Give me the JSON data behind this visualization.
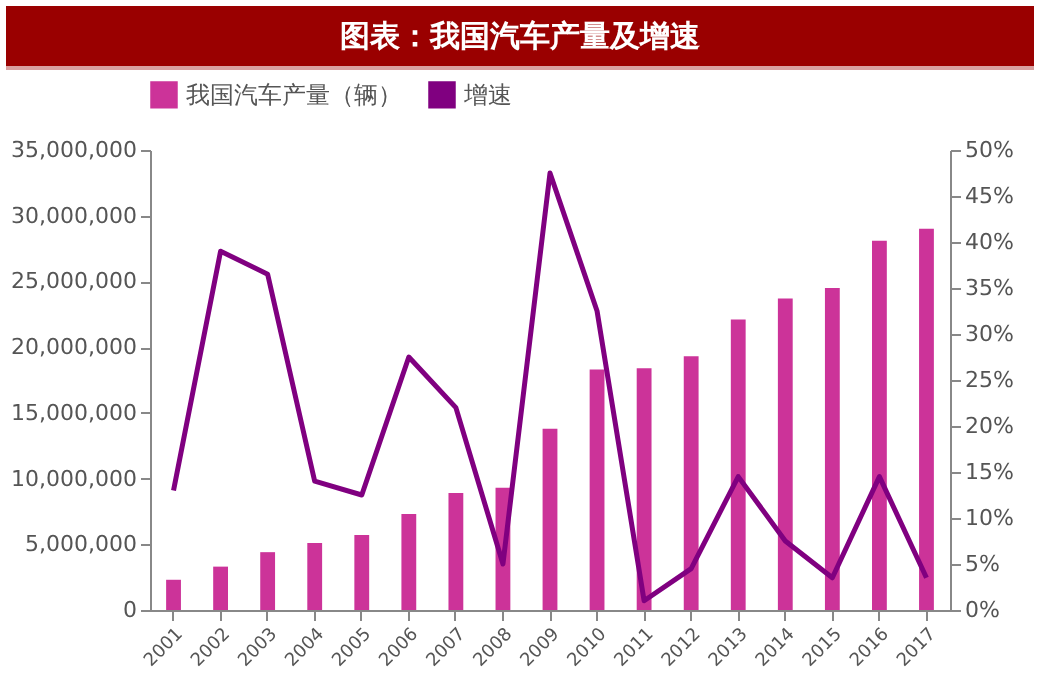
{
  "chart_data": {
    "type": "bar",
    "title": "图表：我国汽车产量及增速",
    "categories": [
      "2001",
      "2002",
      "2003",
      "2004",
      "2005",
      "2006",
      "2007",
      "2008",
      "2009",
      "2010",
      "2011",
      "2012",
      "2013",
      "2014",
      "2015",
      "2016",
      "2017"
    ],
    "series": [
      {
        "name": "我国汽车产量（辆）",
        "color": "#cc3399",
        "values": [
          2300000,
          3300000,
          4400000,
          5100000,
          5700000,
          7300000,
          8900000,
          9300000,
          13800000,
          18300000,
          18400000,
          19300000,
          22100000,
          23700000,
          24500000,
          28100000,
          29000000
        ]
      },
      {
        "name": "增速",
        "type": "line",
        "axis": "y2",
        "color": "#800080",
        "values": [
          13,
          39,
          36.5,
          14,
          12.5,
          27.5,
          22,
          5,
          47.5,
          32.5,
          1,
          4.5,
          14.5,
          7.5,
          3.5,
          14.5,
          3.5
        ]
      }
    ],
    "ylim": [
      0,
      35000000
    ],
    "yticks": [
      {
        "value": 0,
        "label": "0"
      },
      {
        "value": 5000000,
        "label": "5,000,000"
      },
      {
        "value": 10000000,
        "label": "10,000,000"
      },
      {
        "value": 15000000,
        "label": "15,000,000"
      },
      {
        "value": 20000000,
        "label": "20,000,000"
      },
      {
        "value": 25000000,
        "label": "25,000,000"
      },
      {
        "value": 30000000,
        "label": "30,000,000"
      },
      {
        "value": 35000000,
        "label": "35,000,000"
      }
    ],
    "y2lim": [
      0,
      50
    ],
    "y2ticks": [
      {
        "value": 0,
        "label": "0%"
      },
      {
        "value": 5,
        "label": "5%"
      },
      {
        "value": 10,
        "label": "10%"
      },
      {
        "value": 15,
        "label": "15%"
      },
      {
        "value": 20,
        "label": "20%"
      },
      {
        "value": 25,
        "label": "25%"
      },
      {
        "value": 30,
        "label": "30%"
      },
      {
        "value": 35,
        "label": "35%"
      },
      {
        "value": 40,
        "label": "40%"
      },
      {
        "value": 45,
        "label": "45%"
      },
      {
        "value": 50,
        "label": "50%"
      }
    ],
    "grid": false,
    "legend": "top"
  }
}
